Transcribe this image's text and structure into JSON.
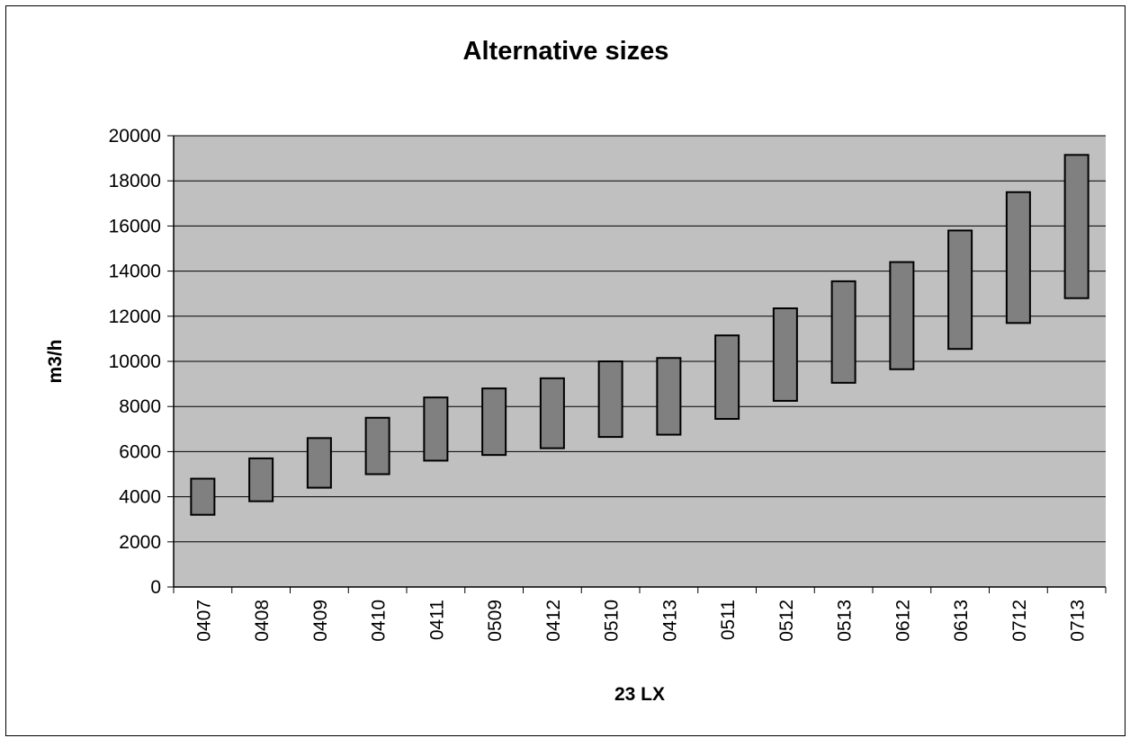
{
  "chart_data": {
    "type": "bar",
    "subtype": "floating-range",
    "title": "Alternative sizes",
    "xlabel": "23 LX",
    "ylabel": "m3/h",
    "ylim": [
      0,
      20000
    ],
    "y_ticks": [
      "0",
      "2000",
      "4000",
      "6000",
      "8000",
      "10000",
      "12000",
      "14000",
      "16000",
      "18000",
      "20000"
    ],
    "grid": true,
    "legend": "none",
    "categories": [
      "0407",
      "0408",
      "0409",
      "0410",
      "0411",
      "0509",
      "0412",
      "0510",
      "0413",
      "0511",
      "0512",
      "0513",
      "0612",
      "0613",
      "0712",
      "0713"
    ],
    "ranges": [
      [
        3200,
        4800
      ],
      [
        3800,
        5700
      ],
      [
        4400,
        6600
      ],
      [
        5000,
        7500
      ],
      [
        5600,
        8400
      ],
      [
        5850,
        8800
      ],
      [
        6150,
        9250
      ],
      [
        6650,
        10000
      ],
      [
        6750,
        10150
      ],
      [
        7450,
        11150
      ],
      [
        8250,
        12350
      ],
      [
        9050,
        13550
      ],
      [
        9650,
        14400
      ],
      [
        10550,
        15800
      ],
      [
        11700,
        17500
      ],
      [
        12800,
        19150
      ]
    ],
    "colors": {
      "plot_background": "#c0c0c0",
      "bar_fill": "#808080",
      "bar_stroke": "#000000",
      "gridline": "#000000"
    }
  }
}
